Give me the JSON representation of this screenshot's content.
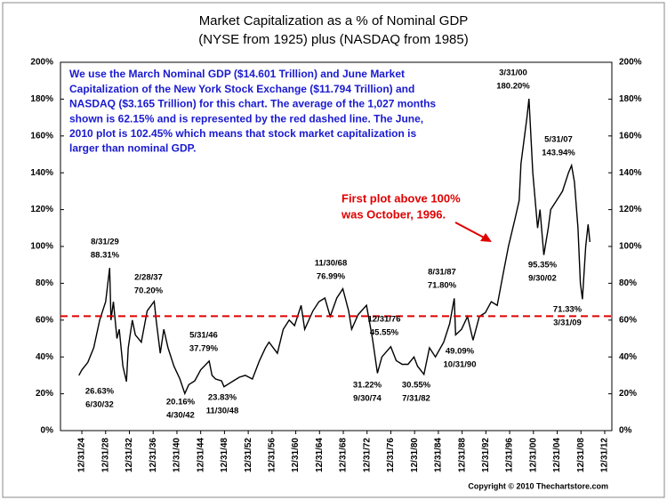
{
  "chart_data": {
    "type": "line",
    "title": [
      "Market Capitalization as a % of Nominal GDP",
      "(NYSE from 1925) plus (NASDAQ from 1985)"
    ],
    "note": [
      "We use the March Nominal GDP ($14.601 Trillion) and June Market",
      "Capitalization of the New York Stock Exchange ($11.794 Trillion) and",
      "NASDAQ ($3.165 Trillion) for this chart.  The average of the 1,027 months",
      "shown is 62.15% and is represented by the red dashed line.  The June,",
      "2010 plot is 102.45% which means that stock market capitalization is",
      "larger than nominal GDP."
    ],
    "callout": [
      "First plot above 100%",
      "was October, 1996."
    ],
    "copyright": "Copyright © 2010 Thechartstore.com",
    "color": "#000000",
    "x": [
      1924.5,
      1925,
      1926,
      1927,
      1928,
      1929,
      1929.67,
      1929.9,
      1930.3,
      1930.9,
      1931.3,
      1931.9,
      1932.5,
      1932.8,
      1933.5,
      1934,
      1935,
      1936,
      1937.17,
      1937.5,
      1938.2,
      1938.8,
      1939.5,
      1940.5,
      1941.5,
      1942.33,
      1943,
      1944,
      1945,
      1946.42,
      1946.9,
      1947.5,
      1948.5,
      1948.92,
      1949.5,
      1950.5,
      1951.5,
      1952.5,
      1953.7,
      1954.9,
      1955.9,
      1956.5,
      1957.9,
      1958.9,
      1959.9,
      1960.8,
      1961.9,
      1962.5,
      1963.9,
      1964.9,
      1965.9,
      1966.8,
      1967.9,
      1968.92,
      1969.9,
      1970.4,
      1971.5,
      1972.9,
      1973.9,
      1974.75,
      1975.5,
      1976.99,
      1977.9,
      1978.9,
      1979.9,
      1980.9,
      1981.5,
      1982.58,
      1983.5,
      1984.5,
      1985.9,
      1986.9,
      1987.67,
      1987.9,
      1988.9,
      1989.9,
      1990.83,
      1991.9,
      1992.9,
      1993.9,
      1994.9,
      1995.9,
      1996.8,
      1997.9,
      1998.6,
      1998.9,
      1999.9,
      2000.25,
      2000.9,
      2001.7,
      2002.1,
      2002.75,
      2003.5,
      2003.9,
      2004.9,
      2005.9,
      2006.9,
      2007.42,
      2007.9,
      2008.5,
      2008.9,
      2009.25,
      2009.8,
      2010.2,
      2010.5
    ],
    "values": [
      30,
      33,
      37,
      45,
      60,
      70,
      88.31,
      60,
      70,
      50,
      55,
      35,
      26.63,
      45,
      60,
      52,
      48,
      65,
      70.2,
      60,
      42,
      55,
      45,
      35,
      28,
      20.16,
      25,
      27,
      33,
      37.79,
      30,
      28,
      27,
      23.83,
      25,
      27,
      29,
      30,
      28,
      38,
      45,
      48,
      42,
      55,
      60,
      57,
      68,
      55,
      65,
      70,
      72,
      62,
      72,
      76.99,
      65,
      55,
      63,
      68,
      50,
      31.22,
      40,
      45.55,
      38,
      36,
      36,
      40,
      35,
      30.55,
      45,
      40,
      48,
      58,
      71.8,
      52,
      55,
      62,
      49.09,
      62,
      64,
      70,
      68,
      85,
      100,
      115,
      125,
      145,
      170,
      180.2,
      140,
      110,
      120,
      95.35,
      110,
      120,
      125,
      130,
      140,
      143.94,
      135,
      110,
      80,
      71.33,
      100,
      112,
      102.45
    ],
    "average": {
      "value": 62.15,
      "color": "#e00000"
    },
    "annotations": [
      {
        "date": "8/31/29",
        "label": "88.31%"
      },
      {
        "date": "6/30/32",
        "label": "26.63%"
      },
      {
        "date": "2/28/37",
        "label": "70.20%"
      },
      {
        "date": "4/30/42",
        "label": "20.16%"
      },
      {
        "date": "5/31/46",
        "label": "37.79%"
      },
      {
        "date": "11/30/48",
        "label": "23.83%"
      },
      {
        "date": "11/30/68",
        "label": "76.99%"
      },
      {
        "date": "12/31/76",
        "label": "45.55%"
      },
      {
        "date": "9/30/74",
        "label": "31.22%"
      },
      {
        "date": "7/31/82",
        "label": "30.55%"
      },
      {
        "date": "8/31/87",
        "label": "71.80%"
      },
      {
        "date": "10/31/90",
        "label": "49.09%"
      },
      {
        "date": "3/31/00",
        "label": "180.20%"
      },
      {
        "date": "9/30/02",
        "label": "95.35%"
      },
      {
        "date": "5/31/07",
        "label": "143.94%"
      },
      {
        "date": "3/31/09",
        "label": "71.33%"
      }
    ],
    "xlim": [
      1921.4,
      2014.2
    ],
    "xticks": [
      {
        "value": 1925,
        "label": "12/31/24"
      },
      {
        "value": 1929,
        "label": "12/31/28"
      },
      {
        "value": 1933,
        "label": "12/31/32"
      },
      {
        "value": 1937,
        "label": "12/31/36"
      },
      {
        "value": 1941,
        "label": "12/31/40"
      },
      {
        "value": 1945,
        "label": "12/31/44"
      },
      {
        "value": 1949,
        "label": "12/31/48"
      },
      {
        "value": 1953,
        "label": "12/31/52"
      },
      {
        "value": 1957,
        "label": "12/31/56"
      },
      {
        "value": 1961,
        "label": "12/31/60"
      },
      {
        "value": 1965,
        "label": "12/31/64"
      },
      {
        "value": 1969,
        "label": "12/31/68"
      },
      {
        "value": 1973,
        "label": "12/31/72"
      },
      {
        "value": 1977,
        "label": "12/31/76"
      },
      {
        "value": 1981,
        "label": "12/31/80"
      },
      {
        "value": 1985,
        "label": "12/31/84"
      },
      {
        "value": 1989,
        "label": "12/31/88"
      },
      {
        "value": 1993,
        "label": "12/31/92"
      },
      {
        "value": 1997,
        "label": "12/31/96"
      },
      {
        "value": 2001,
        "label": "12/31/00"
      },
      {
        "value": 2005,
        "label": "12/31/04"
      },
      {
        "value": 2009,
        "label": "12/31/08"
      },
      {
        "value": 2013,
        "label": "12/31/12"
      }
    ],
    "ylim": [
      0,
      200
    ],
    "yticks": [
      {
        "value": 0,
        "label": "0%"
      },
      {
        "value": 20,
        "label": "20%"
      },
      {
        "value": 40,
        "label": "40%"
      },
      {
        "value": 60,
        "label": "60%"
      },
      {
        "value": 80,
        "label": "80%"
      },
      {
        "value": 100,
        "label": "100%"
      },
      {
        "value": 120,
        "label": "120%"
      },
      {
        "value": 140,
        "label": "140%"
      },
      {
        "value": 160,
        "label": "160%"
      },
      {
        "value": 180,
        "label": "180%"
      },
      {
        "value": 200,
        "label": "200%"
      }
    ]
  }
}
